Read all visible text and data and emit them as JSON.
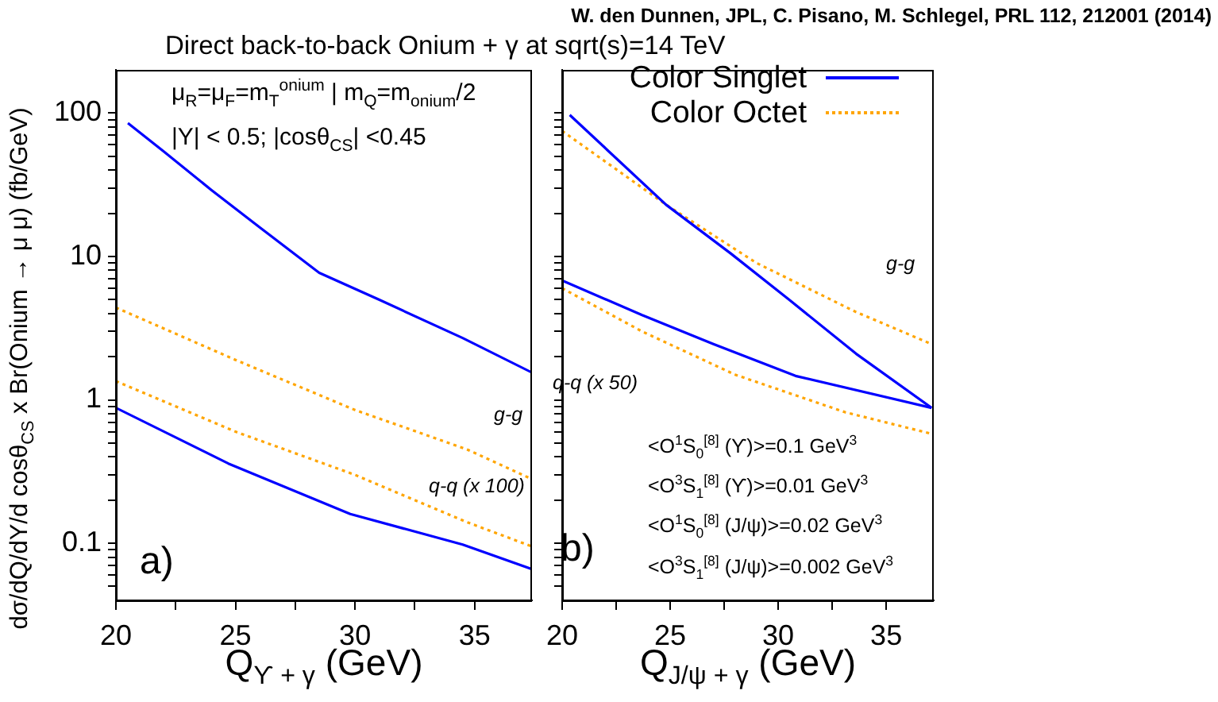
{
  "chart_data": [
    {
      "type": "line",
      "title": "Direct back-to-back Onium + γ at sqrt(s)=14 TeV",
      "xlabel": "Q$_{ϒ + γ}$   (GeV)",
      "ylabel": "dσ/dQ/dY/d cosθ$_{CS}$ x Br(Onium → μ μ) (fb/GeV)",
      "annotations": [
        "W. den Dunnen, JPL, C. Pisano, M. Schlegel, PRL 112, 212001 (2014)",
        "μ$_{R}$=μ$_{F}$=m$_{T}$$^{onium}$ | m$_{Q}$=m$_{onium}$/2",
        "|Y| < 0.5; |cosθ$_{CS}$| <0.45",
        "a)",
        "g-g",
        "q-q (x 100)"
      ],
      "series": [
        {
          "color": "#0000ff",
          "line_style": "solid",
          "x": [
            20.5,
            22,
            24,
            26,
            28.5,
            31,
            34.5,
            37.4
          ],
          "values": [
            85,
            54,
            29,
            16,
            7.7,
            5.0,
            2.7,
            1.55
          ]
        },
        {
          "color": "#ffa500",
          "line_style": "dotted",
          "x": [
            20,
            25,
            30,
            34.7,
            37.4
          ],
          "values": [
            4.4,
            1.9,
            0.85,
            0.45,
            0.28
          ]
        },
        {
          "color": "#ffa500",
          "line_style": "dotted",
          "x": [
            20,
            25,
            30,
            34.7,
            37.4
          ],
          "values": [
            1.35,
            0.6,
            0.3,
            0.14,
            0.095
          ]
        },
        {
          "color": "#0000ff",
          "line_style": "solid",
          "x": [
            20,
            24.7,
            29.8,
            34.5,
            37.4
          ],
          "values": [
            0.88,
            0.36,
            0.16,
            0.098,
            0.066
          ]
        }
      ],
      "xlim": [
        20,
        37.4
      ],
      "xticks": [
        20,
        {
          "value": 22.5,
          "label": null
        },
        25,
        {
          "value": 27.5,
          "label": null
        },
        30,
        {
          "value": 32.5,
          "label": null
        },
        35
      ],
      "ylim": [
        0.04,
        200
      ],
      "log": true,
      "yticks": [
        {
          "value": 0.05,
          "label": null
        },
        {
          "value": 0.06,
          "label": null
        },
        {
          "value": 0.07,
          "label": null
        },
        {
          "value": 0.08,
          "label": null
        },
        {
          "value": 0.09,
          "label": null
        },
        0.1,
        {
          "value": 0.2,
          "label": null
        },
        {
          "value": 0.3,
          "label": null
        },
        {
          "value": 0.4,
          "label": null
        },
        {
          "value": 0.5,
          "label": null
        },
        {
          "value": 0.6,
          "label": null
        },
        {
          "value": 0.7,
          "label": null
        },
        {
          "value": 0.8,
          "label": null
        },
        {
          "value": 0.9,
          "label": null
        },
        1,
        {
          "value": 2,
          "label": null
        },
        {
          "value": 3,
          "label": null
        },
        {
          "value": 4,
          "label": null
        },
        {
          "value": 5,
          "label": null
        },
        {
          "value": 6,
          "label": null
        },
        {
          "value": 7,
          "label": null
        },
        {
          "value": 8,
          "label": null
        },
        {
          "value": 9,
          "label": null
        },
        10,
        {
          "value": 20,
          "label": null
        },
        {
          "value": 30,
          "label": null
        },
        {
          "value": 40,
          "label": null
        },
        {
          "value": 50,
          "label": null
        },
        {
          "value": 60,
          "label": null
        },
        {
          "value": 70,
          "label": null
        },
        {
          "value": 80,
          "label": null
        },
        {
          "value": 90,
          "label": null
        },
        100
      ],
      "grid": false,
      "legend": false,
      "marker": "none"
    },
    {
      "type": "line",
      "xlabel": "Q$_{J/ψ + γ}$   (GeV)",
      "annotations": [
        "b)",
        "<O$^{1}$S$_{0}$$^{[8]}$ (ϒ)>=0.1 GeV$^{3}$",
        "<O$^{3}$S$_{1}$$^{[8]}$ (ϒ)>=0.01 GeV$^{3}$",
        "<O$^{1}$S$_{0}$$^{[8]}$ (J/ψ)>=0.02 GeV$^{3}$",
        "<O$^{3}$S$_{1}$$^{[8]}$ (J/ψ)>=0.002 GeV$^{3}$",
        "g-g",
        "q-q (x 50)"
      ],
      "series": [
        {
          "name": "Color Singlet",
          "color": "#0000ff",
          "line_style": "solid",
          "x": [
            20.35,
            24.8,
            27.8,
            30.5,
            33.6,
            37.1
          ],
          "values": [
            97,
            23,
            10.5,
            5.0,
            2.1,
            0.88
          ]
        },
        {
          "name": "Color Octet",
          "color": "#ffa500",
          "line_style": "dotted",
          "x": [
            20,
            24.8,
            29,
            33.6,
            37.1
          ],
          "values": [
            75,
            23,
            9,
            4.1,
            2.45
          ]
        },
        {
          "color": "#0000ff",
          "line_style": "solid",
          "x": [
            20,
            23.7,
            27,
            30.8,
            37.1
          ],
          "values": [
            6.8,
            3.9,
            2.45,
            1.47,
            0.88
          ]
        },
        {
          "color": "#ffa500",
          "line_style": "dotted",
          "x": [
            20,
            23.7,
            28,
            33.1,
            37.1
          ],
          "values": [
            6.0,
            3.0,
            1.5,
            0.82,
            0.58
          ]
        }
      ],
      "xlim": [
        20,
        37.2
      ],
      "xticks": [
        20,
        {
          "value": 22.5,
          "label": null
        },
        25,
        {
          "value": 27.5,
          "label": null
        },
        30,
        {
          "value": 32.5,
          "label": null
        },
        35
      ],
      "ylim": [
        0.04,
        200
      ],
      "log": true,
      "yticks": [
        {
          "value": 0.05,
          "label": null
        },
        {
          "value": 0.06,
          "label": null
        },
        {
          "value": 0.07,
          "label": null
        },
        {
          "value": 0.08,
          "label": null
        },
        {
          "value": 0.09,
          "label": null
        },
        0.1,
        {
          "value": 0.2,
          "label": null
        },
        {
          "value": 0.3,
          "label": null
        },
        {
          "value": 0.4,
          "label": null
        },
        {
          "value": 0.5,
          "label": null
        },
        {
          "value": 0.6,
          "label": null
        },
        {
          "value": 0.7,
          "label": null
        },
        {
          "value": 0.8,
          "label": null
        },
        {
          "value": 0.9,
          "label": null
        },
        1,
        {
          "value": 2,
          "label": null
        },
        {
          "value": 3,
          "label": null
        },
        {
          "value": 4,
          "label": null
        },
        {
          "value": 5,
          "label": null
        },
        {
          "value": 6,
          "label": null
        },
        {
          "value": 7,
          "label": null
        },
        {
          "value": 8,
          "label": null
        },
        {
          "value": 9,
          "label": null
        },
        10,
        {
          "value": 20,
          "label": null
        },
        {
          "value": 30,
          "label": null
        },
        {
          "value": 40,
          "label": null
        },
        {
          "value": 50,
          "label": null
        },
        {
          "value": 60,
          "label": null
        },
        {
          "value": 70,
          "label": null
        },
        {
          "value": 80,
          "label": null
        },
        {
          "value": 90,
          "label": null
        },
        100
      ],
      "tick_labels": "x",
      "grid": false,
      "legend": "top right",
      "marker": "none"
    }
  ]
}
